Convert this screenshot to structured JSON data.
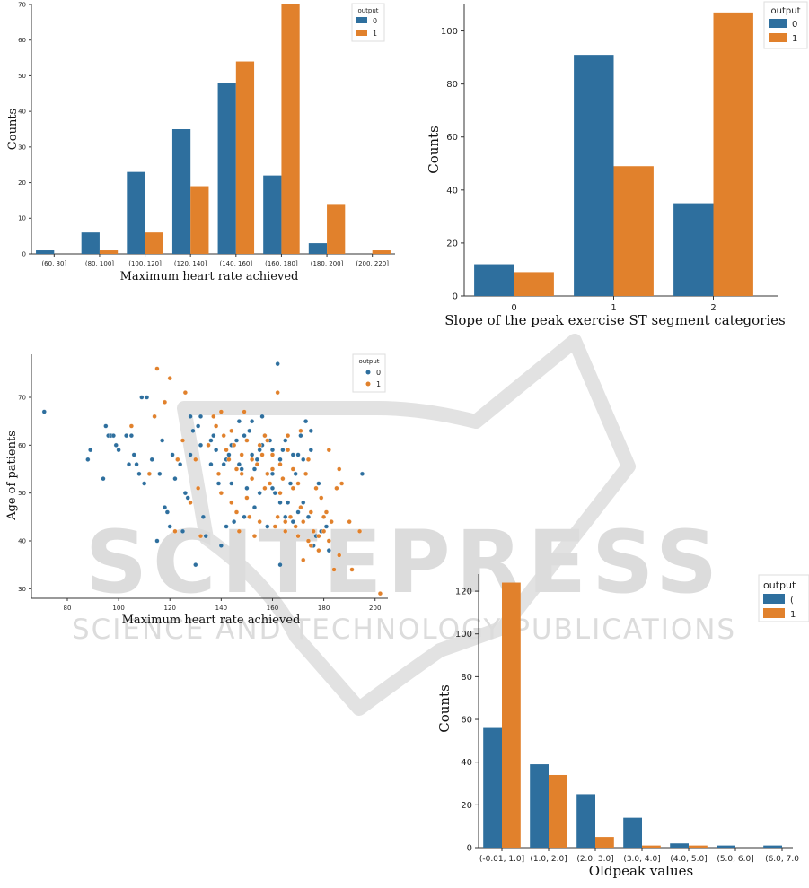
{
  "watermark": {
    "big": "SCITEPRESS",
    "small": "SCIENCE AND TECHNOLOGY PUBLICATIONS",
    "color": "#d9d9d9"
  },
  "colors": {
    "class0": "#2e6f9e",
    "class1": "#e1812c"
  },
  "chart_data": [
    {
      "type": "bar",
      "categories": [
        "(60, 80]",
        "(80, 100]",
        "(100, 120]",
        "(120, 140]",
        "(140, 160]",
        "(160, 180]",
        "(180, 200]",
        "(200, 220]"
      ],
      "series": [
        {
          "name": "0",
          "values": [
            1,
            6,
            23,
            35,
            48,
            22,
            3,
            0
          ]
        },
        {
          "name": "1",
          "values": [
            0,
            1,
            6,
            19,
            54,
            70,
            14,
            1
          ]
        }
      ],
      "title": "",
      "xlabel": "Maximum heart rate achieved",
      "ylabel": "Counts",
      "ylim": [
        0,
        70
      ],
      "yticks": [
        0,
        10,
        20,
        30,
        40,
        50,
        60,
        70
      ],
      "legend_title": "output",
      "legend": "top-right",
      "grid": false
    },
    {
      "type": "bar",
      "categories": [
        "0",
        "1",
        "2"
      ],
      "series": [
        {
          "name": "0",
          "values": [
            12,
            91,
            35
          ]
        },
        {
          "name": "1",
          "values": [
            9,
            49,
            107
          ]
        }
      ],
      "title": "",
      "xlabel": "Slope of the peak exercise ST segment categories",
      "ylabel": "Counts",
      "ylim": [
        0,
        110
      ],
      "yticks": [
        0,
        20,
        40,
        60,
        80,
        100
      ],
      "legend_title": "output",
      "legend": "top-right",
      "grid": false
    },
    {
      "type": "scatter",
      "xlabel": "Maximum heart rate achieved",
      "ylabel": "Age of patients",
      "xlim": [
        66,
        205
      ],
      "ylim": [
        28,
        79
      ],
      "xticks": [
        80,
        100,
        120,
        140,
        160,
        180,
        200
      ],
      "yticks": [
        30,
        40,
        50,
        60,
        70
      ],
      "legend_title": "output",
      "legend": "top-right",
      "grid": false,
      "series": [
        {
          "name": "0",
          "points": [
            [
              71,
              67
            ],
            [
              88,
              57
            ],
            [
              89,
              59
            ],
            [
              94,
              53
            ],
            [
              95,
              64
            ],
            [
              96,
              62
            ],
            [
              97,
              62
            ],
            [
              98,
              62
            ],
            [
              99,
              60
            ],
            [
              100,
              59
            ],
            [
              103,
              62
            ],
            [
              104,
              56
            ],
            [
              105,
              62
            ],
            [
              106,
              58
            ],
            [
              107,
              56
            ],
            [
              108,
              54
            ],
            [
              109,
              70
            ],
            [
              110,
              52
            ],
            [
              111,
              70
            ],
            [
              112,
              54
            ],
            [
              113,
              57
            ],
            [
              114,
              66
            ],
            [
              115,
              40
            ],
            [
              116,
              54
            ],
            [
              117,
              61
            ],
            [
              118,
              47
            ],
            [
              119,
              46
            ],
            [
              120,
              43
            ],
            [
              121,
              58
            ],
            [
              122,
              53
            ],
            [
              123,
              57
            ],
            [
              124,
              56
            ],
            [
              125,
              42
            ],
            [
              126,
              50
            ],
            [
              127,
              49
            ],
            [
              128,
              58
            ],
            [
              129,
              63
            ],
            [
              130,
              35
            ],
            [
              131,
              64
            ],
            [
              132,
              66
            ],
            [
              133,
              45
            ],
            [
              134,
              41
            ],
            [
              135,
              60
            ],
            [
              136,
              61
            ],
            [
              137,
              62
            ],
            [
              138,
              59
            ],
            [
              139,
              52
            ],
            [
              140,
              39
            ],
            [
              141,
              56
            ],
            [
              142,
              57
            ],
            [
              143,
              58
            ],
            [
              144,
              60
            ],
            [
              145,
              44
            ],
            [
              146,
              61
            ],
            [
              147,
              56
            ],
            [
              148,
              55
            ],
            [
              149,
              45
            ],
            [
              150,
              51
            ],
            [
              151,
              63
            ],
            [
              152,
              58
            ],
            [
              153,
              47
            ],
            [
              154,
              57
            ],
            [
              155,
              59
            ],
            [
              156,
              60
            ],
            [
              157,
              62
            ],
            [
              158,
              43
            ],
            [
              159,
              61
            ],
            [
              160,
              51
            ],
            [
              161,
              50
            ],
            [
              162,
              77
            ],
            [
              163,
              57
            ],
            [
              164,
              59
            ],
            [
              165,
              45
            ],
            [
              166,
              48
            ],
            [
              167,
              52
            ],
            [
              168,
              44
            ],
            [
              169,
              54
            ],
            [
              170,
              58
            ],
            [
              171,
              62
            ],
            [
              172,
              48
            ],
            [
              173,
              65
            ],
            [
              174,
              45
            ],
            [
              175,
              59
            ],
            [
              176,
              39
            ],
            [
              178,
              52
            ],
            [
              179,
              42
            ],
            [
              182,
              38
            ],
            [
              195,
              54
            ],
            [
              142,
              43
            ],
            [
              144,
              52
            ],
            [
              150,
              61
            ],
            [
              153,
              55
            ],
            [
              156,
              66
            ],
            [
              160,
              59
            ],
            [
              163,
              48
            ],
            [
              170,
              46
            ],
            [
              172,
              57
            ],
            [
              175,
              63
            ],
            [
              147,
              65
            ],
            [
              149,
              62
            ],
            [
              155,
              50
            ],
            [
              158,
              54
            ],
            [
              165,
              61
            ],
            [
              168,
              58
            ],
            [
              128,
              66
            ],
            [
              132,
              60
            ],
            [
              136,
              56
            ],
            [
              152,
              65
            ],
            [
              160,
              54
            ],
            [
              163,
              35
            ],
            [
              181,
              43
            ],
            [
              177,
              41
            ]
          ]
        },
        {
          "name": "1",
          "points": [
            [
              105,
              64
            ],
            [
              112,
              54
            ],
            [
              114,
              66
            ],
            [
              115,
              76
            ],
            [
              118,
              69
            ],
            [
              120,
              74
            ],
            [
              122,
              42
            ],
            [
              123,
              57
            ],
            [
              125,
              61
            ],
            [
              126,
              71
            ],
            [
              128,
              48
            ],
            [
              130,
              57
            ],
            [
              131,
              51
            ],
            [
              132,
              41
            ],
            [
              135,
              60
            ],
            [
              137,
              66
            ],
            [
              138,
              64
            ],
            [
              139,
              54
            ],
            [
              140,
              67
            ],
            [
              141,
              62
            ],
            [
              142,
              59
            ],
            [
              143,
              57
            ],
            [
              144,
              48
            ],
            [
              145,
              60
            ],
            [
              146,
              55
            ],
            [
              147,
              42
            ],
            [
              148,
              58
            ],
            [
              149,
              67
            ],
            [
              150,
              61
            ],
            [
              151,
              45
            ],
            [
              152,
              53
            ],
            [
              153,
              41
            ],
            [
              154,
              56
            ],
            [
              155,
              44
            ],
            [
              156,
              58
            ],
            [
              157,
              62
            ],
            [
              158,
              54
            ],
            [
              159,
              52
            ],
            [
              160,
              55
            ],
            [
              161,
              43
            ],
            [
              162,
              71
            ],
            [
              163,
              56
            ],
            [
              164,
              53
            ],
            [
              165,
              42
            ],
            [
              166,
              59
            ],
            [
              167,
              45
            ],
            [
              168,
              51
            ],
            [
              169,
              43
            ],
            [
              170,
              41
            ],
            [
              171,
              47
            ],
            [
              172,
              44
            ],
            [
              173,
              54
            ],
            [
              174,
              40
            ],
            [
              175,
              46
            ],
            [
              176,
              42
            ],
            [
              177,
              51
            ],
            [
              178,
              41
            ],
            [
              179,
              49
            ],
            [
              180,
              45
            ],
            [
              181,
              46
            ],
            [
              182,
              59
            ],
            [
              183,
              44
            ],
            [
              184,
              34
            ],
            [
              185,
              51
            ],
            [
              186,
              37
            ],
            [
              187,
              52
            ],
            [
              190,
              44
            ],
            [
              194,
              42
            ],
            [
              202,
              29
            ],
            [
              140,
              50
            ],
            [
              144,
              63
            ],
            [
              150,
              49
            ],
            [
              152,
              57
            ],
            [
              155,
              60
            ],
            [
              157,
              51
            ],
            [
              160,
              58
            ],
            [
              162,
              45
            ],
            [
              163,
              50
            ],
            [
              165,
              44
            ],
            [
              168,
              55
            ],
            [
              170,
              52
            ],
            [
              172,
              36
            ],
            [
              175,
              39
            ],
            [
              178,
              38
            ],
            [
              180,
              42
            ],
            [
              182,
              40
            ],
            [
              186,
              55
            ],
            [
              191,
              34
            ],
            [
              146,
              46
            ],
            [
              148,
              54
            ],
            [
              158,
              61
            ],
            [
              166,
              62
            ],
            [
              171,
              63
            ],
            [
              174,
              57
            ]
          ]
        }
      ]
    },
    {
      "type": "bar",
      "categories": [
        "(-0.01, 1.0]",
        "(1.0, 2.0]",
        "(2.0, 3.0]",
        "(3.0, 4.0]",
        "(4.0, 5.0]",
        "(5.0, 6.0]",
        "(6.0, 7.0"
      ],
      "series": [
        {
          "name": "0",
          "values": [
            56,
            39,
            25,
            14,
            2,
            1,
            1
          ]
        },
        {
          "name": "1",
          "values": [
            124,
            34,
            5,
            1,
            1,
            0,
            0
          ]
        }
      ],
      "title": "",
      "xlabel": "Oldpeak values",
      "ylabel": "Counts",
      "ylim": [
        0,
        128
      ],
      "yticks": [
        0,
        20,
        40,
        60,
        80,
        100,
        120
      ],
      "legend_title": "output",
      "legend_labels": [
        "(",
        "1"
      ],
      "legend": "top-right",
      "grid": false
    }
  ]
}
